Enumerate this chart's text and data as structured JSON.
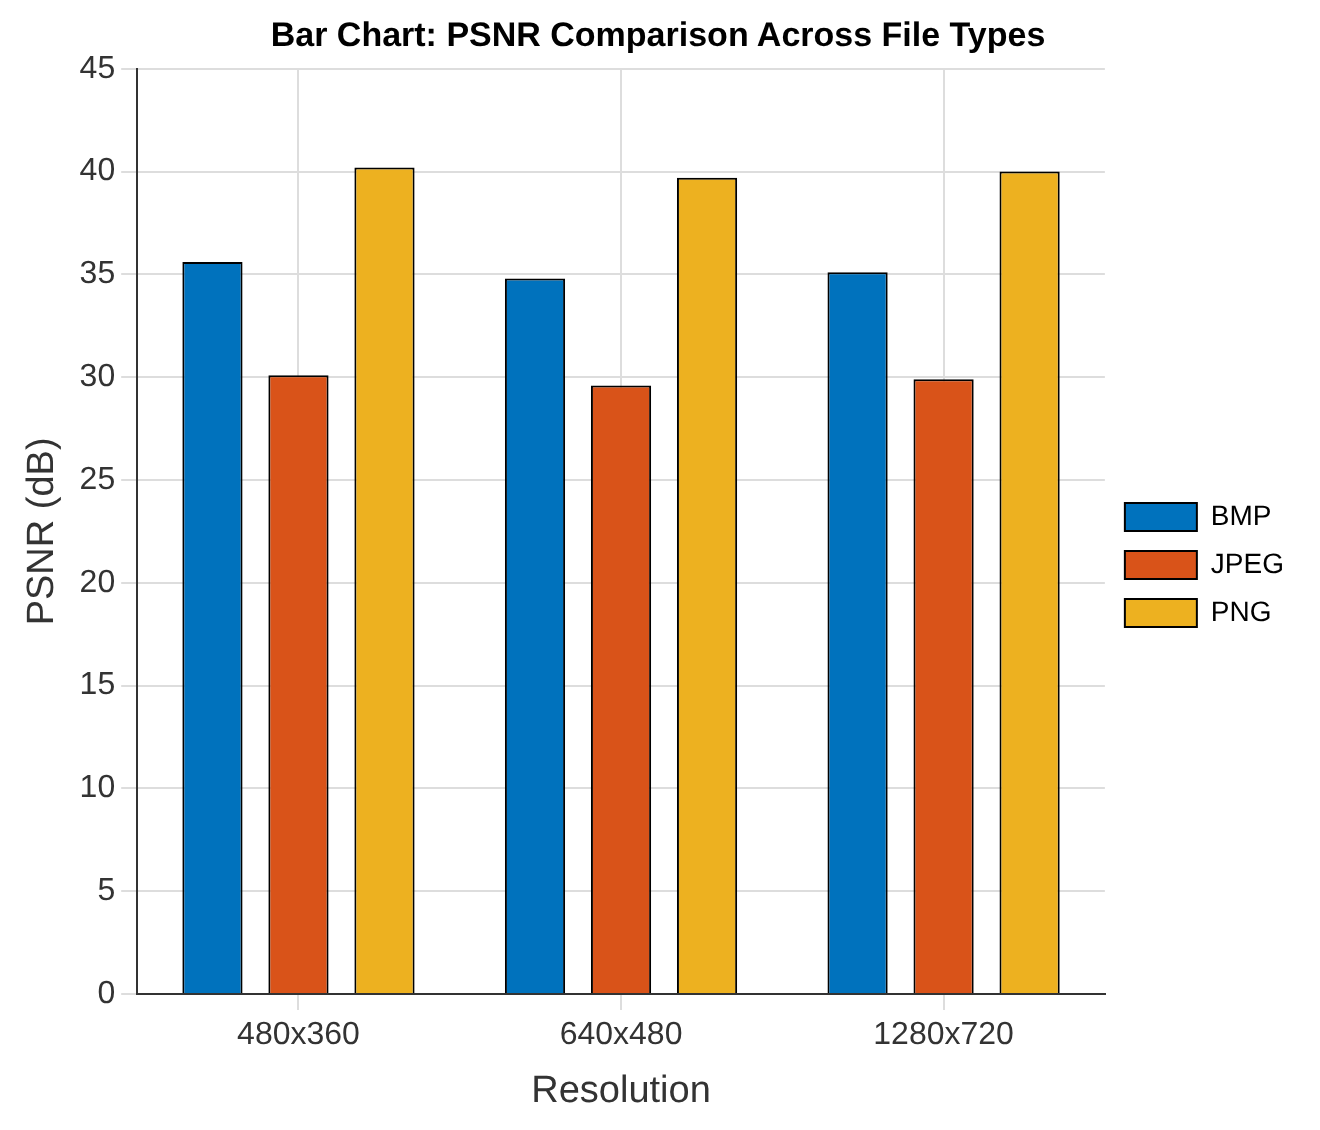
{
  "chart_data": {
    "type": "bar",
    "title": "Bar Chart: PSNR Comparison Across File Types",
    "xlabel": "Resolution",
    "ylabel": "PSNR (dB)",
    "categories": [
      "480x360",
      "640x480",
      "1280x720"
    ],
    "series": [
      {
        "name": "BMP",
        "color": "#0072bd",
        "values": [
          35.6,
          34.8,
          35.1
        ]
      },
      {
        "name": "JPEG",
        "color": "#d95319",
        "values": [
          30.1,
          29.6,
          29.9
        ]
      },
      {
        "name": "PNG",
        "color": "#edb120",
        "values": [
          40.2,
          39.7,
          40.0
        ]
      }
    ],
    "ylim": [
      0,
      45
    ],
    "yticks": [
      0,
      5,
      10,
      15,
      20,
      25,
      30,
      35,
      40,
      45
    ],
    "grid": true,
    "legend": "right"
  }
}
